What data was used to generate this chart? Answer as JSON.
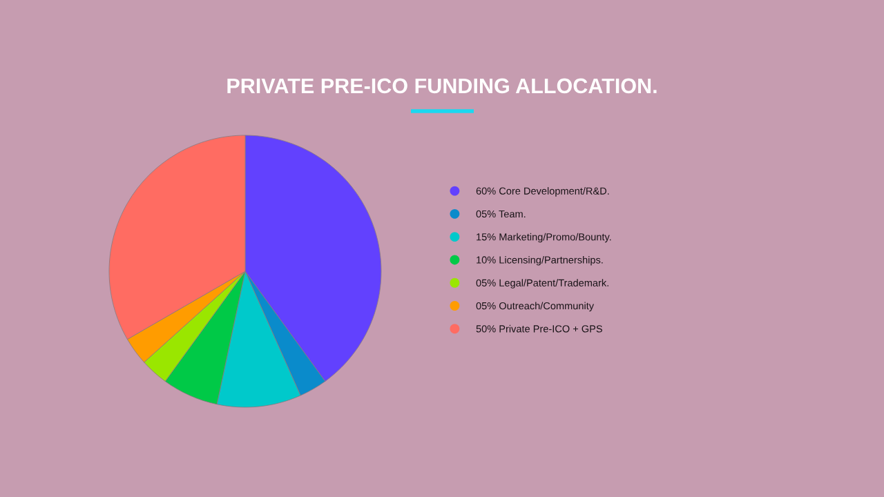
{
  "chart_data": {
    "type": "pie",
    "title": "PRIVATE PRE-ICO FUNDING ALLOCATION.",
    "categories": [
      "60% Core Development/R&D.",
      "05% Team.",
      "15% Marketing/Promo/Bounty.",
      "10% Licensing/Partnerships.",
      "05% Legal/Patent/Trademark.",
      "05% Outreach/Community",
      "50% Private Pre-ICO + GPS"
    ],
    "values": [
      60,
      5,
      15,
      10,
      5,
      5,
      50
    ],
    "colors": [
      "#6241fe",
      "#0a8bcb",
      "#00c9cb",
      "#00c947",
      "#9ae600",
      "#ff9c00",
      "#ff6c62"
    ],
    "legend": "right"
  }
}
